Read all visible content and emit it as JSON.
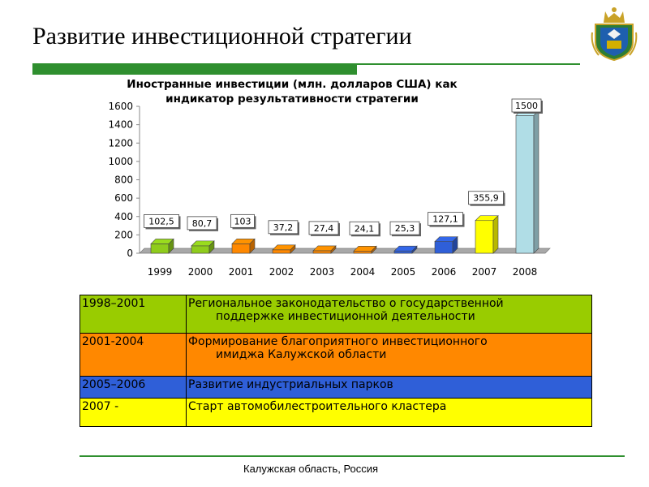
{
  "slide": {
    "title": "Развитие инвестиционной стратегии",
    "footer": "Калужская область, Россия",
    "accent_color": "#2f8f2f",
    "emblem_icon": "kaluga-coat-of-arms-icon"
  },
  "chart_data": {
    "type": "bar",
    "title": "Иностранные инвестиции (млн. долларов США) как индикатор результативности стратегии",
    "title_lines": [
      "Иностранные инвестиции (млн. долларов США) как",
      "индикатор результативности стратегии"
    ],
    "categories": [
      "1999",
      "2000",
      "2001",
      "2002",
      "2003",
      "2004",
      "2005",
      "2006",
      "2007",
      "2008"
    ],
    "values": [
      102.5,
      80.7,
      103,
      37.2,
      27.4,
      24.1,
      25.3,
      127.1,
      355.9,
      1500
    ],
    "value_labels": [
      "102,5",
      "80,7",
      "103",
      "37,2",
      "27,4",
      "24,1",
      "25,3",
      "127,1",
      "355,9",
      "1500"
    ],
    "colors": [
      "#8fcc1c",
      "#8fcc1c",
      "#ff8800",
      "#ff8800",
      "#ff8800",
      "#ff8800",
      "#2f5fd8",
      "#2f5fd8",
      "#ffff00",
      "#b0dde6"
    ],
    "yticks": [
      "0",
      "200",
      "400",
      "600",
      "800",
      "1000",
      "1200",
      "1400",
      "1600"
    ],
    "ylim": [
      0,
      1600
    ],
    "xlabel": "",
    "ylabel": "",
    "grid": false
  },
  "table": {
    "rows": [
      {
        "period": "1998–2001",
        "desc_lines": [
          "Региональное законодательство о государственной",
          "поддержке инвестиционной деятельности"
        ],
        "color": "#99cc00"
      },
      {
        "period": "2001-2004",
        "desc_lines": [
          "Формирование благоприятного инвестиционного",
          "имиджа Калужской области"
        ],
        "color": "#ff8800"
      },
      {
        "period": "2005–2006",
        "desc_lines": [
          "Развитие индустриальных парков"
        ],
        "color": "#2f5fd8"
      },
      {
        "period": "2007 -",
        "desc_lines": [
          "Старт автомобилестроительного кластера"
        ],
        "color": "#ffff00"
      }
    ]
  }
}
